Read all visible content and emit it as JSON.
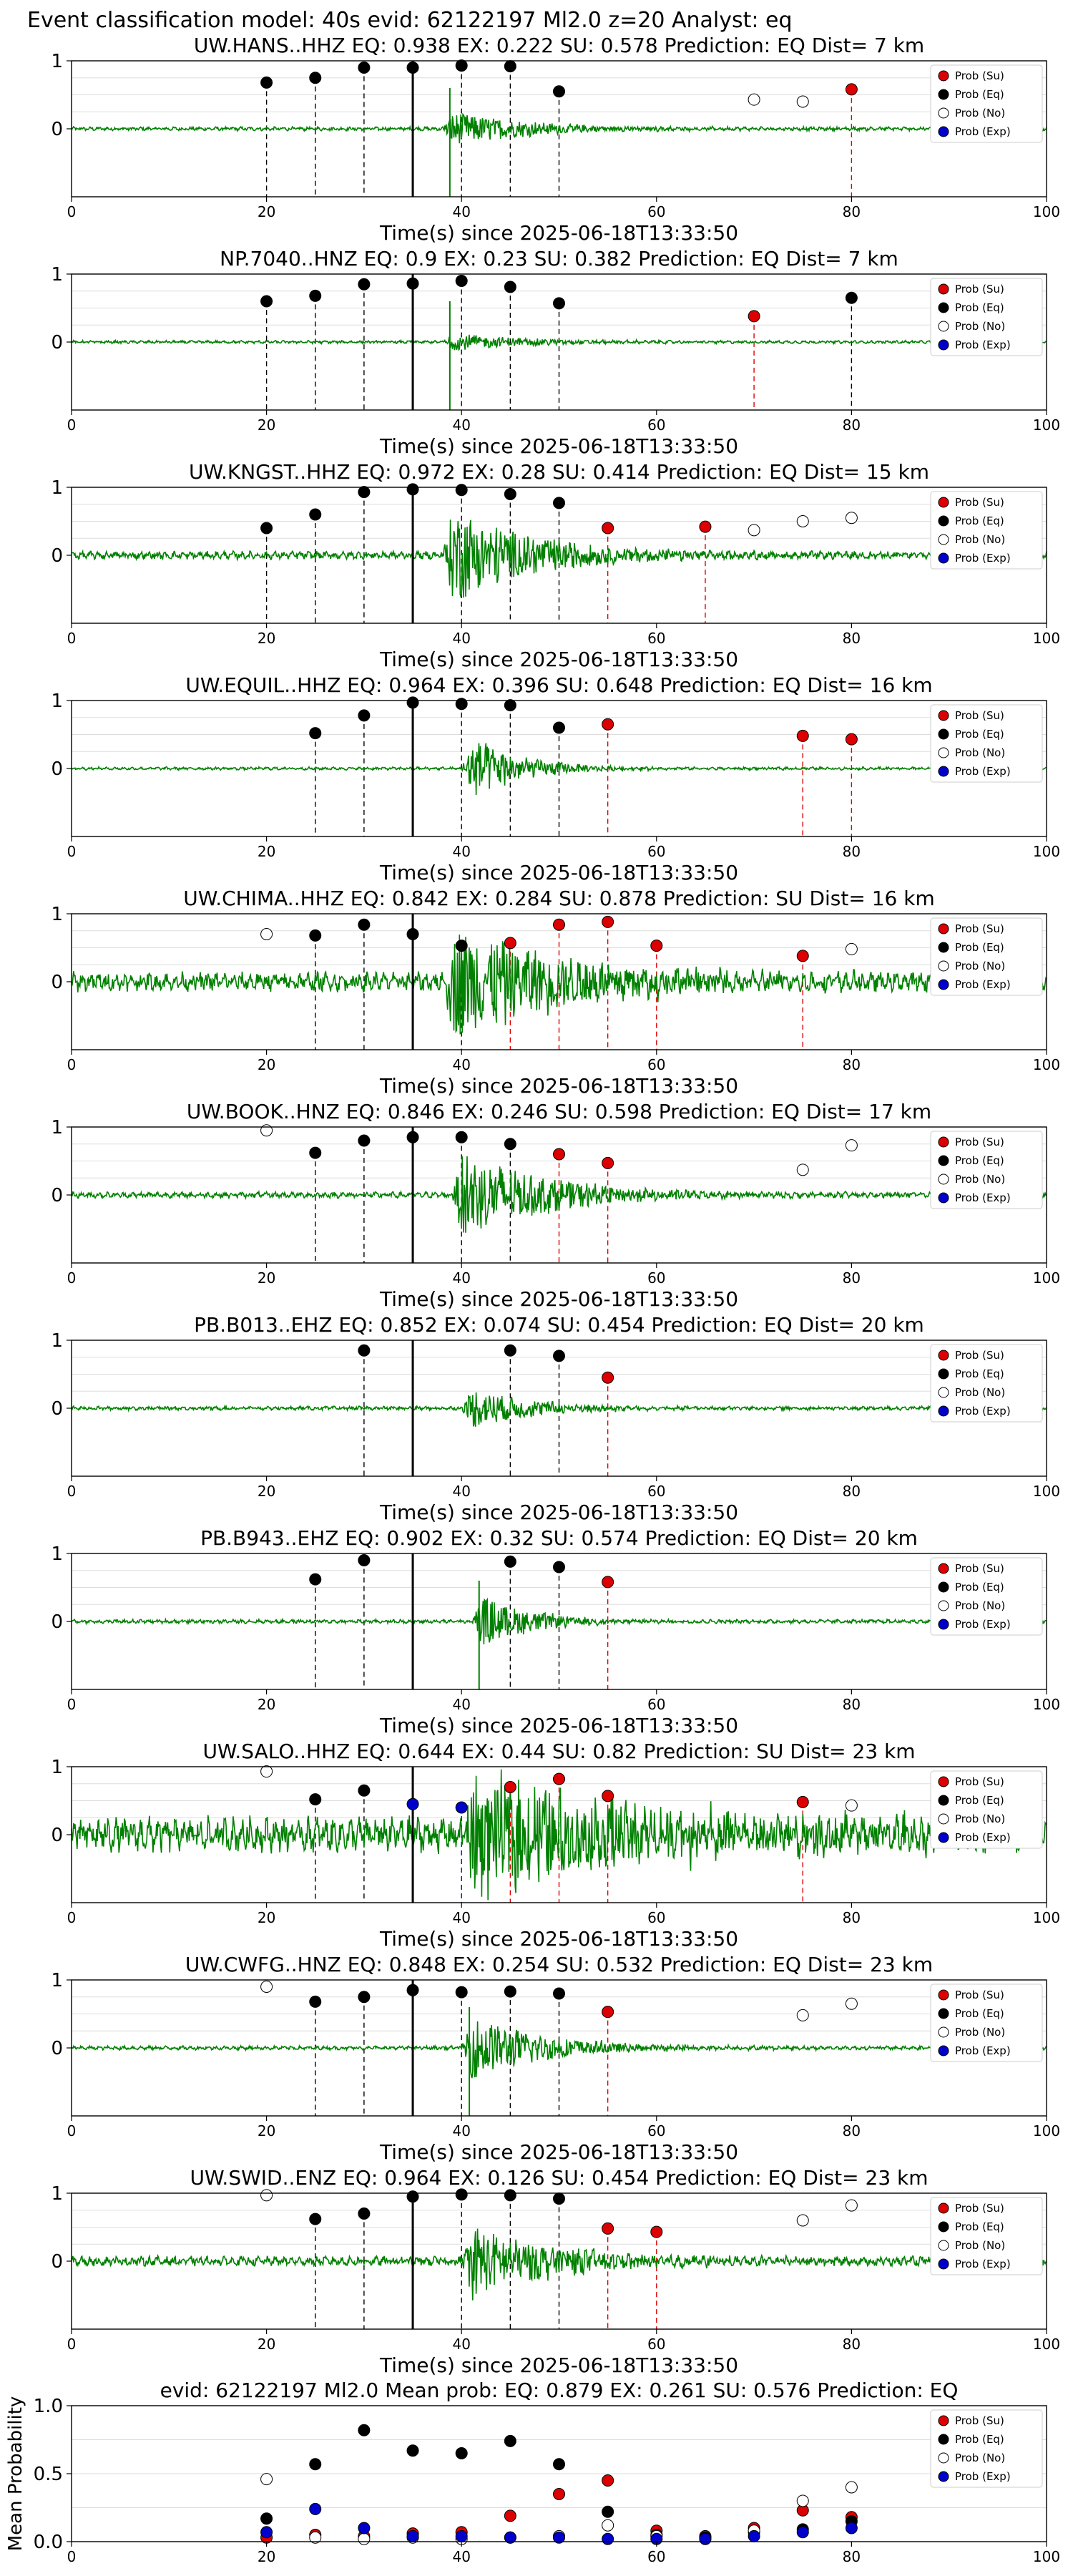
{
  "figure": {
    "suptitle": "Event classification model: 40s evid: 62122197 Ml2.0 z=20 Analyst: eq"
  },
  "legend_entries": [
    "Prob (Su)",
    "Prob (Eq)",
    "Prob (No)",
    "Prob (Exp)"
  ],
  "colors": {
    "su": "#dd0000",
    "eq": "#000000",
    "no": "#ffffff",
    "exp": "#0000cc",
    "trace": "#008000"
  },
  "x_axis": {
    "label": "Time(s) since 2025-06-18T13:33:50",
    "ticks": [
      0,
      20,
      40,
      60,
      80,
      100
    ],
    "xlim": [
      0,
      100
    ]
  },
  "chart_data": [
    {
      "type": "scatter",
      "title": "UW.HANS..HHZ   EQ: 0.938  EX: 0.222  SU: 0.578   Prediction: EQ    Dist= 7 km",
      "ylim": [
        -1,
        1
      ],
      "yticks": [
        0,
        1
      ],
      "xlim": [
        0,
        100
      ],
      "grid": true,
      "legend": "top-right",
      "onset": 35,
      "amp": 0.3,
      "noise": 0.02,
      "burst_start": 38,
      "burst_dur": 14,
      "spike": -1.0,
      "points": [
        {
          "x": 20,
          "y": 0.68,
          "cls": "eq"
        },
        {
          "x": 25,
          "y": 0.75,
          "cls": "eq"
        },
        {
          "x": 30,
          "y": 0.9,
          "cls": "eq"
        },
        {
          "x": 35,
          "y": 0.9,
          "cls": "eq"
        },
        {
          "x": 40,
          "y": 0.93,
          "cls": "eq"
        },
        {
          "x": 45,
          "y": 0.92,
          "cls": "eq"
        },
        {
          "x": 50,
          "y": 0.55,
          "cls": "eq"
        },
        {
          "x": 70,
          "y": 0.43,
          "cls": "no"
        },
        {
          "x": 75,
          "y": 0.4,
          "cls": "no"
        },
        {
          "x": 80,
          "y": 0.58,
          "cls": "su"
        }
      ]
    },
    {
      "type": "scatter",
      "title": "NP.7040..HNZ   EQ: 0.9  EX: 0.23  SU: 0.382   Prediction: EQ    Dist= 7 km",
      "ylim": [
        -1,
        1
      ],
      "yticks": [
        0,
        1
      ],
      "xlim": [
        0,
        100
      ],
      "grid": true,
      "legend": "top-right",
      "onset": 35,
      "amp": 0.15,
      "noise": 0.015,
      "burst_start": 38,
      "burst_dur": 14,
      "spike": -1.0,
      "points": [
        {
          "x": 20,
          "y": 0.6,
          "cls": "eq"
        },
        {
          "x": 25,
          "y": 0.68,
          "cls": "eq"
        },
        {
          "x": 30,
          "y": 0.85,
          "cls": "eq"
        },
        {
          "x": 35,
          "y": 0.86,
          "cls": "eq"
        },
        {
          "x": 40,
          "y": 0.9,
          "cls": "eq"
        },
        {
          "x": 45,
          "y": 0.81,
          "cls": "eq"
        },
        {
          "x": 50,
          "y": 0.57,
          "cls": "eq"
        },
        {
          "x": 70,
          "y": 0.38,
          "cls": "su"
        },
        {
          "x": 80,
          "y": 0.65,
          "cls": "eq"
        }
      ]
    },
    {
      "type": "scatter",
      "title": "UW.KNGST..HHZ   EQ: 0.972  EX: 0.28  SU: 0.414   Prediction: EQ    Dist= 15 km",
      "ylim": [
        -1,
        1
      ],
      "yticks": [
        0,
        1
      ],
      "xlim": [
        0,
        100
      ],
      "grid": true,
      "legend": "top-right",
      "onset": 35,
      "amp": 0.8,
      "noise": 0.04,
      "burst_start": 38,
      "burst_dur": 16,
      "spike": 0,
      "points": [
        {
          "x": 20,
          "y": 0.4,
          "cls": "eq"
        },
        {
          "x": 25,
          "y": 0.6,
          "cls": "eq"
        },
        {
          "x": 30,
          "y": 0.93,
          "cls": "eq"
        },
        {
          "x": 35,
          "y": 0.97,
          "cls": "eq"
        },
        {
          "x": 40,
          "y": 0.96,
          "cls": "eq"
        },
        {
          "x": 45,
          "y": 0.9,
          "cls": "eq"
        },
        {
          "x": 50,
          "y": 0.77,
          "cls": "eq"
        },
        {
          "x": 55,
          "y": 0.4,
          "cls": "su"
        },
        {
          "x": 65,
          "y": 0.42,
          "cls": "su"
        },
        {
          "x": 70,
          "y": 0.37,
          "cls": "no"
        },
        {
          "x": 75,
          "y": 0.5,
          "cls": "no"
        },
        {
          "x": 80,
          "y": 0.55,
          "cls": "no"
        }
      ]
    },
    {
      "type": "scatter",
      "title": "UW.EQUIL..HHZ   EQ: 0.964  EX: 0.396  SU: 0.648   Prediction: EQ    Dist= 16 km",
      "ylim": [
        -1,
        1
      ],
      "yticks": [
        0,
        1
      ],
      "xlim": [
        0,
        100
      ],
      "grid": true,
      "legend": "top-right",
      "onset": 35,
      "amp": 0.6,
      "noise": 0.015,
      "burst_start": 40,
      "burst_dur": 9,
      "spike": 0,
      "points": [
        {
          "x": 25,
          "y": 0.52,
          "cls": "eq"
        },
        {
          "x": 30,
          "y": 0.78,
          "cls": "eq"
        },
        {
          "x": 35,
          "y": 0.97,
          "cls": "eq"
        },
        {
          "x": 40,
          "y": 0.95,
          "cls": "eq"
        },
        {
          "x": 45,
          "y": 0.93,
          "cls": "eq"
        },
        {
          "x": 50,
          "y": 0.6,
          "cls": "eq"
        },
        {
          "x": 55,
          "y": 0.65,
          "cls": "su"
        },
        {
          "x": 75,
          "y": 0.48,
          "cls": "su"
        },
        {
          "x": 80,
          "y": 0.43,
          "cls": "su"
        }
      ]
    },
    {
      "type": "scatter",
      "title": "UW.CHIMA..HHZ   EQ: 0.842  EX: 0.284  SU: 0.878   Prediction: SU    Dist= 16 km",
      "ylim": [
        -1,
        1
      ],
      "yticks": [
        0,
        1
      ],
      "xlim": [
        0,
        100
      ],
      "grid": true,
      "legend": "top-right",
      "onset": 35,
      "amp": 0.9,
      "noise": 0.1,
      "burst_start": 38,
      "burst_dur": 24,
      "spike": 0,
      "points": [
        {
          "x": 20,
          "y": 0.7,
          "cls": "no"
        },
        {
          "x": 25,
          "y": 0.68,
          "cls": "eq"
        },
        {
          "x": 30,
          "y": 0.84,
          "cls": "eq"
        },
        {
          "x": 35,
          "y": 0.7,
          "cls": "eq"
        },
        {
          "x": 40,
          "y": 0.53,
          "cls": "eq"
        },
        {
          "x": 45,
          "y": 0.57,
          "cls": "su"
        },
        {
          "x": 50,
          "y": 0.84,
          "cls": "su"
        },
        {
          "x": 55,
          "y": 0.88,
          "cls": "su"
        },
        {
          "x": 60,
          "y": 0.53,
          "cls": "su"
        },
        {
          "x": 75,
          "y": 0.38,
          "cls": "su"
        },
        {
          "x": 80,
          "y": 0.48,
          "cls": "no"
        }
      ]
    },
    {
      "type": "scatter",
      "title": "UW.BOOK..HNZ   EQ: 0.846  EX: 0.246  SU: 0.598   Prediction: EQ    Dist= 17 km",
      "ylim": [
        -1,
        1
      ],
      "yticks": [
        0,
        1
      ],
      "xlim": [
        0,
        100
      ],
      "grid": true,
      "legend": "top-right",
      "onset": 35,
      "amp": 0.75,
      "noise": 0.03,
      "burst_start": 39,
      "burst_dur": 16,
      "spike": 0,
      "points": [
        {
          "x": 20,
          "y": 0.95,
          "cls": "no"
        },
        {
          "x": 25,
          "y": 0.62,
          "cls": "eq"
        },
        {
          "x": 30,
          "y": 0.8,
          "cls": "eq"
        },
        {
          "x": 35,
          "y": 0.85,
          "cls": "eq"
        },
        {
          "x": 40,
          "y": 0.85,
          "cls": "eq"
        },
        {
          "x": 45,
          "y": 0.75,
          "cls": "eq"
        },
        {
          "x": 50,
          "y": 0.6,
          "cls": "su"
        },
        {
          "x": 55,
          "y": 0.47,
          "cls": "su"
        },
        {
          "x": 75,
          "y": 0.37,
          "cls": "no"
        },
        {
          "x": 80,
          "y": 0.73,
          "cls": "no"
        }
      ]
    },
    {
      "type": "scatter",
      "title": "PB.B013..EHZ   EQ: 0.852  EX: 0.074  SU: 0.454   Prediction: EQ    Dist= 20 km",
      "ylim": [
        -1,
        1
      ],
      "yticks": [
        0,
        1
      ],
      "xlim": [
        0,
        100
      ],
      "grid": true,
      "legend": "top-right",
      "onset": 35,
      "amp": 0.35,
      "noise": 0.02,
      "burst_start": 40,
      "burst_dur": 12,
      "spike": 0,
      "points": [
        {
          "x": 30,
          "y": 0.85,
          "cls": "eq"
        },
        {
          "x": 45,
          "y": 0.85,
          "cls": "eq"
        },
        {
          "x": 50,
          "y": 0.77,
          "cls": "eq"
        },
        {
          "x": 55,
          "y": 0.45,
          "cls": "su"
        }
      ]
    },
    {
      "type": "scatter",
      "title": "PB.B943..EHZ   EQ: 0.902  EX: 0.32  SU: 0.574   Prediction: EQ    Dist= 20 km",
      "ylim": [
        -1,
        1
      ],
      "yticks": [
        0,
        1
      ],
      "xlim": [
        0,
        100
      ],
      "grid": true,
      "legend": "top-right",
      "onset": 35,
      "amp": 0.45,
      "noise": 0.02,
      "burst_start": 41,
      "burst_dur": 10,
      "spike": -1.0,
      "points": [
        {
          "x": 25,
          "y": 0.62,
          "cls": "eq"
        },
        {
          "x": 30,
          "y": 0.9,
          "cls": "eq"
        },
        {
          "x": 45,
          "y": 0.88,
          "cls": "eq"
        },
        {
          "x": 50,
          "y": 0.8,
          "cls": "eq"
        },
        {
          "x": 55,
          "y": 0.58,
          "cls": "su"
        }
      ]
    },
    {
      "type": "scatter",
      "title": "UW.SALO..HHZ   EQ: 0.644  EX: 0.44  SU: 0.82   Prediction: SU    Dist= 23 km",
      "ylim": [
        -1,
        1
      ],
      "yticks": [
        0,
        1
      ],
      "xlim": [
        0,
        100
      ],
      "grid": true,
      "legend": "top-right",
      "onset": 35,
      "amp": 0.85,
      "noise": 0.18,
      "burst_start": 40,
      "burst_dur": 40,
      "spike": 0,
      "points": [
        {
          "x": 20,
          "y": 0.93,
          "cls": "no"
        },
        {
          "x": 25,
          "y": 0.52,
          "cls": "eq"
        },
        {
          "x": 30,
          "y": 0.65,
          "cls": "eq"
        },
        {
          "x": 35,
          "y": 0.45,
          "cls": "exp"
        },
        {
          "x": 40,
          "y": 0.4,
          "cls": "exp"
        },
        {
          "x": 45,
          "y": 0.7,
          "cls": "su"
        },
        {
          "x": 50,
          "y": 0.82,
          "cls": "su"
        },
        {
          "x": 55,
          "y": 0.57,
          "cls": "su"
        },
        {
          "x": 75,
          "y": 0.48,
          "cls": "su"
        },
        {
          "x": 80,
          "y": 0.43,
          "cls": "no"
        }
      ]
    },
    {
      "type": "scatter",
      "title": "UW.CWFG..HNZ   EQ: 0.848  EX: 0.254  SU: 0.532   Prediction: EQ    Dist= 23 km",
      "ylim": [
        -1,
        1
      ],
      "yticks": [
        0,
        1
      ],
      "xlim": [
        0,
        100
      ],
      "grid": true,
      "legend": "top-right",
      "onset": 35,
      "amp": 0.55,
      "noise": 0.02,
      "burst_start": 40,
      "burst_dur": 14,
      "spike": -1.0,
      "points": [
        {
          "x": 20,
          "y": 0.9,
          "cls": "no"
        },
        {
          "x": 25,
          "y": 0.68,
          "cls": "eq"
        },
        {
          "x": 30,
          "y": 0.75,
          "cls": "eq"
        },
        {
          "x": 35,
          "y": 0.85,
          "cls": "eq"
        },
        {
          "x": 40,
          "y": 0.82,
          "cls": "eq"
        },
        {
          "x": 45,
          "y": 0.83,
          "cls": "eq"
        },
        {
          "x": 50,
          "y": 0.8,
          "cls": "eq"
        },
        {
          "x": 55,
          "y": 0.53,
          "cls": "su"
        },
        {
          "x": 75,
          "y": 0.48,
          "cls": "no"
        },
        {
          "x": 80,
          "y": 0.65,
          "cls": "no"
        }
      ]
    },
    {
      "type": "scatter",
      "title": "UW.SWID..ENZ   EQ: 0.964  EX: 0.126  SU: 0.454   Prediction: EQ    Dist= 23 km",
      "ylim": [
        -1,
        1
      ],
      "yticks": [
        0,
        1
      ],
      "xlim": [
        0,
        100
      ],
      "grid": true,
      "legend": "top-right",
      "onset": 35,
      "amp": 0.6,
      "noise": 0.05,
      "burst_start": 40,
      "burst_dur": 16,
      "spike": 0,
      "points": [
        {
          "x": 20,
          "y": 0.97,
          "cls": "no"
        },
        {
          "x": 25,
          "y": 0.62,
          "cls": "eq"
        },
        {
          "x": 30,
          "y": 0.7,
          "cls": "eq"
        },
        {
          "x": 35,
          "y": 0.95,
          "cls": "eq"
        },
        {
          "x": 40,
          "y": 0.98,
          "cls": "eq"
        },
        {
          "x": 45,
          "y": 0.97,
          "cls": "eq"
        },
        {
          "x": 50,
          "y": 0.92,
          "cls": "eq"
        },
        {
          "x": 55,
          "y": 0.48,
          "cls": "su"
        },
        {
          "x": 60,
          "y": 0.43,
          "cls": "su"
        },
        {
          "x": 75,
          "y": 0.6,
          "cls": "no"
        },
        {
          "x": 80,
          "y": 0.82,
          "cls": "no"
        }
      ]
    },
    {
      "type": "scatter",
      "title": "evid: 62122197  Ml2.0   Mean prob:   EQ: 0.879  EX: 0.261  SU: 0.576   Prediction: EQ",
      "ylabel": "Mean Probability",
      "ylim": [
        0,
        1
      ],
      "yticks": [
        0.0,
        0.5,
        1.0
      ],
      "xlim": [
        0,
        100
      ],
      "grid": true,
      "legend": "top-right",
      "series": [
        {
          "cls": "su",
          "x": [
            20,
            25,
            30,
            35,
            40,
            45,
            50,
            55,
            60,
            65,
            70,
            75,
            80
          ],
          "y": [
            0.03,
            0.05,
            0.04,
            0.06,
            0.07,
            0.19,
            0.35,
            0.45,
            0.08,
            0.04,
            0.1,
            0.23,
            0.18
          ]
        },
        {
          "cls": "eq",
          "x": [
            20,
            25,
            30,
            35,
            40,
            45,
            50,
            55,
            60,
            65,
            70,
            75,
            80
          ],
          "y": [
            0.17,
            0.57,
            0.82,
            0.67,
            0.65,
            0.74,
            0.57,
            0.22,
            0.05,
            0.03,
            0.07,
            0.09,
            0.15
          ]
        },
        {
          "cls": "no",
          "x": [
            20,
            25,
            30,
            35,
            40,
            45,
            50,
            55,
            60,
            65,
            70,
            75,
            80
          ],
          "y": [
            0.46,
            0.03,
            0.02,
            0.03,
            0.02,
            0.03,
            0.04,
            0.12,
            0.04,
            0.02,
            0.08,
            0.3,
            0.4
          ]
        },
        {
          "cls": "exp",
          "x": [
            20,
            25,
            30,
            35,
            40,
            45,
            50,
            55,
            60,
            65,
            70,
            75,
            80
          ],
          "y": [
            0.07,
            0.24,
            0.1,
            0.04,
            0.04,
            0.03,
            0.03,
            0.02,
            0.02,
            0.02,
            0.04,
            0.07,
            0.1
          ]
        }
      ]
    }
  ]
}
